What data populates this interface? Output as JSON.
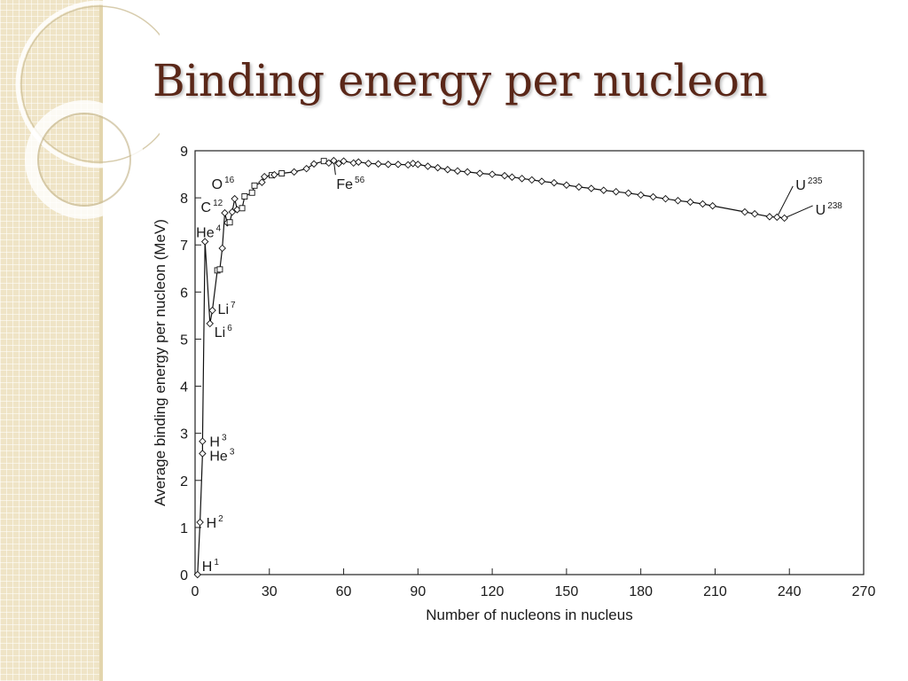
{
  "slide": {
    "title": "Binding energy per nucleon"
  },
  "chart_data": {
    "type": "line",
    "title": "Binding energy per nucleon",
    "xlabel": "Number of nucleons in nucleus",
    "ylabel": "Average binding energy per nucleon (MeV)",
    "xlim": [
      0,
      270
    ],
    "ylim": [
      0,
      9
    ],
    "xticks": [
      "0",
      "30",
      "60",
      "90",
      "120",
      "150",
      "180",
      "210",
      "240",
      "270"
    ],
    "yticks": [
      "0",
      "1",
      "2",
      "3",
      "4",
      "5",
      "6",
      "7",
      "8",
      "9"
    ],
    "grid": false,
    "series": [
      {
        "x": [
          1,
          2,
          3,
          3,
          4,
          6,
          7,
          9,
          10,
          11,
          12,
          13,
          14,
          15,
          16,
          17,
          19,
          20,
          23,
          24,
          27,
          28,
          31,
          32,
          35,
          40,
          45,
          48,
          52,
          54,
          56,
          58,
          60,
          64,
          66,
          70,
          74,
          78,
          82,
          86,
          88,
          90,
          94,
          98,
          102,
          106,
          110,
          115,
          120,
          125,
          128,
          132,
          136,
          140,
          145,
          150,
          155,
          160,
          165,
          170,
          175,
          180,
          185,
          190,
          195,
          200,
          205,
          209,
          222,
          226,
          232,
          235,
          238
        ],
        "y": [
          0,
          1.11,
          2.57,
          2.83,
          7.07,
          5.33,
          5.61,
          6.46,
          6.48,
          6.93,
          7.68,
          7.47,
          7.48,
          7.7,
          7.98,
          7.75,
          7.78,
          8.03,
          8.11,
          8.26,
          8.33,
          8.45,
          8.48,
          8.49,
          8.52,
          8.55,
          8.62,
          8.72,
          8.78,
          8.74,
          8.79,
          8.73,
          8.78,
          8.74,
          8.76,
          8.73,
          8.72,
          8.71,
          8.71,
          8.7,
          8.73,
          8.71,
          8.67,
          8.64,
          8.6,
          8.57,
          8.55,
          8.52,
          8.5,
          8.47,
          8.44,
          8.41,
          8.38,
          8.35,
          8.32,
          8.27,
          8.23,
          8.2,
          8.16,
          8.13,
          8.1,
          8.06,
          8.02,
          7.98,
          7.94,
          7.91,
          7.87,
          7.83,
          7.7,
          7.66,
          7.6,
          7.59,
          7.57
        ]
      }
    ],
    "annotations": [
      {
        "base": "H",
        "mass": "1",
        "x": 1,
        "y": 0
      },
      {
        "base": "H",
        "mass": "2",
        "x": 2,
        "y": 1.11
      },
      {
        "base": "He",
        "mass": "3",
        "x": 3,
        "y": 2.57
      },
      {
        "base": "H",
        "mass": "3",
        "x": 3,
        "y": 2.83
      },
      {
        "base": "He",
        "mass": "4",
        "x": 4,
        "y": 7.07
      },
      {
        "base": "Li",
        "mass": "6",
        "x": 6,
        "y": 5.33
      },
      {
        "base": "Li",
        "mass": "7",
        "x": 7,
        "y": 5.61
      },
      {
        "base": "C",
        "mass": "12",
        "x": 12,
        "y": 7.68
      },
      {
        "base": "O",
        "mass": "16",
        "x": 16,
        "y": 7.98
      },
      {
        "base": "Fe",
        "mass": "56",
        "x": 56,
        "y": 8.79
      },
      {
        "base": "U",
        "mass": "235",
        "x": 235,
        "y": 7.59
      },
      {
        "base": "U",
        "mass": "238",
        "x": 238,
        "y": 7.57
      }
    ]
  }
}
